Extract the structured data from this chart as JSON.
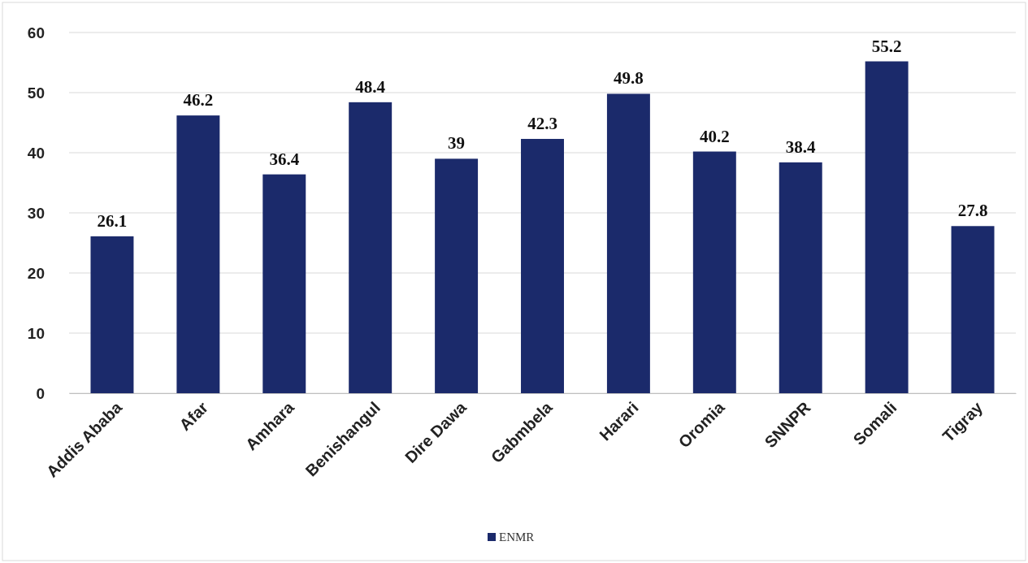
{
  "chart_data": {
    "type": "bar",
    "categories": [
      "Addis Ababa",
      "Afar",
      "Amhara",
      "Benishangul",
      "Dire Dawa",
      "Gabmbela",
      "Harari",
      "Oromia",
      "SNNPR",
      "Somali",
      "Tigray"
    ],
    "series": [
      {
        "name": "ENMR",
        "color": "#1b2a6b",
        "values": [
          26.1,
          46.2,
          36.4,
          48.4,
          39,
          42.3,
          49.8,
          40.2,
          38.4,
          55.2,
          27.8
        ]
      }
    ],
    "ylim": [
      0,
      60
    ],
    "yticks": [
      0,
      10,
      20,
      30,
      40,
      50,
      60
    ],
    "grid": "y",
    "data_labels": true,
    "legend": "bottom"
  }
}
